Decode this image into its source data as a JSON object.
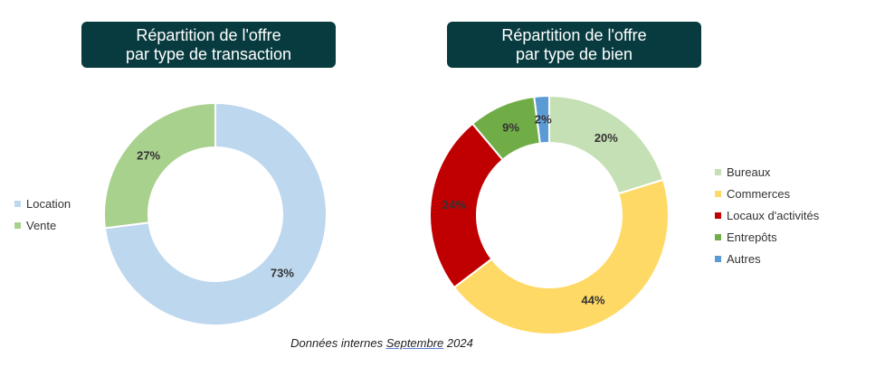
{
  "footnote": {
    "prefix": "Données internes ",
    "month": "Septembre",
    "suffix": " 2024"
  },
  "chart_data": [
    {
      "type": "pie",
      "donut": true,
      "title_lines": [
        "Répartition de l'offre",
        "par type de transaction"
      ],
      "categories": [
        "Location",
        "Vente"
      ],
      "values": [
        73,
        27
      ],
      "labels": [
        "73%",
        "27%"
      ],
      "colors": [
        "#bdd7ee",
        "#a9d18e"
      ],
      "legend_position": "left"
    },
    {
      "type": "pie",
      "donut": true,
      "title_lines": [
        "Répartition de l'offre",
        "par type de bien"
      ],
      "categories": [
        "Bureaux",
        "Commerces",
        "Locaux d'activités",
        "Entrepôts",
        "Autres"
      ],
      "values": [
        20,
        44,
        24,
        9,
        2
      ],
      "labels": [
        "20%",
        "44%",
        "24%",
        "9%",
        "2%"
      ],
      "colors": [
        "#c5e0b4",
        "#ffd966",
        "#c00000",
        "#70ad47",
        "#5b9bd5"
      ],
      "legend_position": "right"
    }
  ]
}
